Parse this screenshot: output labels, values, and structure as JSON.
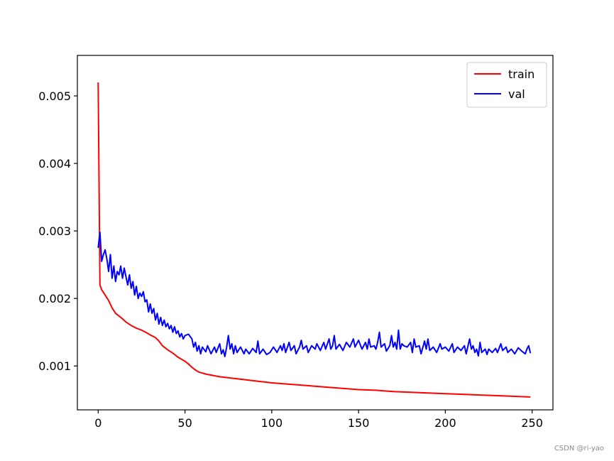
{
  "chart_data": {
    "type": "line",
    "title": "",
    "xlabel": "",
    "ylabel": "",
    "xlim": [
      -12,
      262
    ],
    "ylim": [
      0.00035,
      0.0056
    ],
    "xticks": [
      0,
      50,
      100,
      150,
      200,
      250
    ],
    "xtick_labels": [
      "0",
      "50",
      "100",
      "150",
      "200",
      "250"
    ],
    "yticks": [
      0.001,
      0.002,
      0.003,
      0.004,
      0.005
    ],
    "ytick_labels": [
      "0.001",
      "0.002",
      "0.003",
      "0.004",
      "0.005"
    ],
    "grid": false,
    "legend_position": "top-right",
    "series": [
      {
        "name": "train",
        "color": "#ff0000",
        "points": [
          [
            0,
            0.0052
          ],
          [
            1,
            0.0022
          ],
          [
            2,
            0.00213
          ],
          [
            4,
            0.00205
          ],
          [
            6,
            0.00197
          ],
          [
            8,
            0.00186
          ],
          [
            10,
            0.00178
          ],
          [
            13,
            0.00172
          ],
          [
            16,
            0.00165
          ],
          [
            19,
            0.0016
          ],
          [
            22,
            0.00156
          ],
          [
            25,
            0.00153
          ],
          [
            28,
            0.00149
          ],
          [
            30,
            0.00146
          ],
          [
            33,
            0.00142
          ],
          [
            35,
            0.00137
          ],
          [
            37,
            0.0013
          ],
          [
            40,
            0.00124
          ],
          [
            43,
            0.00119
          ],
          [
            46,
            0.00113
          ],
          [
            50,
            0.00107
          ],
          [
            52,
            0.00103
          ],
          [
            54,
            0.00098
          ],
          [
            56,
            0.00094
          ],
          [
            58,
            0.00091
          ],
          [
            62,
            0.00088
          ],
          [
            66,
            0.00086
          ],
          [
            70,
            0.00084
          ],
          [
            80,
            0.00081
          ],
          [
            90,
            0.00078
          ],
          [
            100,
            0.00075
          ],
          [
            110,
            0.00073
          ],
          [
            120,
            0.00071
          ],
          [
            130,
            0.00069
          ],
          [
            140,
            0.00067
          ],
          [
            150,
            0.00065
          ],
          [
            160,
            0.00064
          ],
          [
            170,
            0.00062
          ],
          [
            180,
            0.00061
          ],
          [
            190,
            0.0006
          ],
          [
            200,
            0.00059
          ],
          [
            210,
            0.00058
          ],
          [
            220,
            0.00057
          ],
          [
            230,
            0.00056
          ],
          [
            240,
            0.00055
          ],
          [
            249,
            0.00054
          ]
        ]
      },
      {
        "name": "val",
        "color": "#0000ff",
        "points": [
          [
            0,
            0.00275
          ],
          [
            1,
            0.00298
          ],
          [
            2,
            0.00255
          ],
          [
            3,
            0.00265
          ],
          [
            4,
            0.00272
          ],
          [
            5,
            0.00258
          ],
          [
            6,
            0.0024
          ],
          [
            7,
            0.00265
          ],
          [
            8,
            0.0023
          ],
          [
            9,
            0.00248
          ],
          [
            10,
            0.00225
          ],
          [
            11,
            0.0024
          ],
          [
            12,
            0.00235
          ],
          [
            13,
            0.00248
          ],
          [
            14,
            0.0023
          ],
          [
            15,
            0.00245
          ],
          [
            16,
            0.00232
          ],
          [
            17,
            0.0022
          ],
          [
            18,
            0.00235
          ],
          [
            19,
            0.00215
          ],
          [
            20,
            0.00225
          ],
          [
            21,
            0.00205
          ],
          [
            22,
            0.00218
          ],
          [
            23,
            0.002
          ],
          [
            24,
            0.00208
          ],
          [
            25,
            0.00203
          ],
          [
            26,
            0.0021
          ],
          [
            27,
            0.00195
          ],
          [
            28,
            0.00198
          ],
          [
            29,
            0.0018
          ],
          [
            30,
            0.00192
          ],
          [
            31,
            0.00178
          ],
          [
            32,
            0.00185
          ],
          [
            33,
            0.00168
          ],
          [
            34,
            0.00178
          ],
          [
            35,
            0.00162
          ],
          [
            36,
            0.00172
          ],
          [
            37,
            0.0016
          ],
          [
            38,
            0.00168
          ],
          [
            39,
            0.00158
          ],
          [
            40,
            0.00163
          ],
          [
            41,
            0.00155
          ],
          [
            42,
            0.0016
          ],
          [
            43,
            0.0015
          ],
          [
            44,
            0.00158
          ],
          [
            45,
            0.00148
          ],
          [
            46,
            0.00152
          ],
          [
            47,
            0.00143
          ],
          [
            48,
            0.00148
          ],
          [
            49,
            0.0014
          ],
          [
            50,
            0.00145
          ],
          [
            52,
            0.00147
          ],
          [
            54,
            0.0014
          ],
          [
            55,
            0.00128
          ],
          [
            56,
            0.00135
          ],
          [
            57,
            0.00122
          ],
          [
            58,
            0.0013
          ],
          [
            59,
            0.00118
          ],
          [
            60,
            0.00128
          ],
          [
            62,
            0.00121
          ],
          [
            63,
            0.0013
          ],
          [
            65,
            0.00118
          ],
          [
            67,
            0.00128
          ],
          [
            68,
            0.0012
          ],
          [
            70,
            0.00133
          ],
          [
            71,
            0.00118
          ],
          [
            72,
            0.00124
          ],
          [
            73,
            0.00114
          ],
          [
            74,
            0.00128
          ],
          [
            75,
            0.00145
          ],
          [
            76,
            0.00125
          ],
          [
            77,
            0.00133
          ],
          [
            78,
            0.00118
          ],
          [
            79,
            0.0013
          ],
          [
            80,
            0.0012
          ],
          [
            82,
            0.00128
          ],
          [
            84,
            0.00118
          ],
          [
            85,
            0.00125
          ],
          [
            87,
            0.00118
          ],
          [
            89,
            0.00126
          ],
          [
            91,
            0.0012
          ],
          [
            92,
            0.00137
          ],
          [
            93,
            0.00118
          ],
          [
            95,
            0.00125
          ],
          [
            97,
            0.00117
          ],
          [
            99,
            0.0012
          ],
          [
            101,
            0.00128
          ],
          [
            103,
            0.0012
          ],
          [
            105,
            0.0013
          ],
          [
            106,
            0.00123
          ],
          [
            107,
            0.00133
          ],
          [
            108,
            0.0012
          ],
          [
            110,
            0.00135
          ],
          [
            111,
            0.00123
          ],
          [
            113,
            0.0013
          ],
          [
            114,
            0.00118
          ],
          [
            116,
            0.00128
          ],
          [
            117,
            0.00138
          ],
          [
            118,
            0.00125
          ],
          [
            120,
            0.0013
          ],
          [
            121,
            0.0012
          ],
          [
            123,
            0.0013
          ],
          [
            125,
            0.00125
          ],
          [
            126,
            0.00133
          ],
          [
            128,
            0.00123
          ],
          [
            130,
            0.00135
          ],
          [
            131,
            0.00125
          ],
          [
            133,
            0.0014
          ],
          [
            134,
            0.00125
          ],
          [
            135,
            0.0013
          ],
          [
            136,
            0.00145
          ],
          [
            137,
            0.00125
          ],
          [
            139,
            0.00132
          ],
          [
            141,
            0.00123
          ],
          [
            143,
            0.00135
          ],
          [
            145,
            0.00128
          ],
          [
            147,
            0.0014
          ],
          [
            148,
            0.00128
          ],
          [
            150,
            0.00138
          ],
          [
            152,
            0.00125
          ],
          [
            154,
            0.00135
          ],
          [
            155,
            0.00125
          ],
          [
            156,
            0.0014
          ],
          [
            157,
            0.00128
          ],
          [
            159,
            0.0013
          ],
          [
            160,
            0.00125
          ],
          [
            161,
            0.00135
          ],
          [
            162,
            0.0015
          ],
          [
            163,
            0.00128
          ],
          [
            165,
            0.00133
          ],
          [
            166,
            0.00122
          ],
          [
            168,
            0.0013
          ],
          [
            169,
            0.00145
          ],
          [
            170,
            0.00128
          ],
          [
            171,
            0.00135
          ],
          [
            172,
            0.00125
          ],
          [
            173,
            0.00153
          ],
          [
            174,
            0.00125
          ],
          [
            175,
            0.00133
          ],
          [
            176,
            0.0013
          ],
          [
            178,
            0.00128
          ],
          [
            180,
            0.00135
          ],
          [
            181,
            0.0012
          ],
          [
            182,
            0.0014
          ],
          [
            183,
            0.00128
          ],
          [
            185,
            0.0013
          ],
          [
            186,
            0.00118
          ],
          [
            188,
            0.00137
          ],
          [
            189,
            0.00125
          ],
          [
            190,
            0.0014
          ],
          [
            191,
            0.00123
          ],
          [
            193,
            0.00128
          ],
          [
            195,
            0.0012
          ],
          [
            197,
            0.00133
          ],
          [
            198,
            0.00125
          ],
          [
            200,
            0.00128
          ],
          [
            202,
            0.00122
          ],
          [
            204,
            0.00133
          ],
          [
            205,
            0.0012
          ],
          [
            207,
            0.00128
          ],
          [
            209,
            0.00123
          ],
          [
            211,
            0.0013
          ],
          [
            212,
            0.00118
          ],
          [
            214,
            0.0014
          ],
          [
            215,
            0.00125
          ],
          [
            216,
            0.0013
          ],
          [
            217,
            0.0012
          ],
          [
            218,
            0.00125
          ],
          [
            219,
            0.00115
          ],
          [
            220,
            0.00135
          ],
          [
            221,
            0.0012
          ],
          [
            223,
            0.00125
          ],
          [
            224,
            0.00117
          ],
          [
            225,
            0.00125
          ],
          [
            227,
            0.0012
          ],
          [
            229,
            0.00126
          ],
          [
            230,
            0.0012
          ],
          [
            232,
            0.00133
          ],
          [
            233,
            0.00123
          ],
          [
            235,
            0.00128
          ],
          [
            236,
            0.0012
          ],
          [
            238,
            0.00125
          ],
          [
            240,
            0.00118
          ],
          [
            242,
            0.00127
          ],
          [
            244,
            0.00122
          ],
          [
            246,
            0.00118
          ],
          [
            247,
            0.00125
          ],
          [
            248,
            0.0013
          ],
          [
            249,
            0.00119
          ]
        ]
      }
    ]
  },
  "watermark": "CSDN @ri-yao"
}
